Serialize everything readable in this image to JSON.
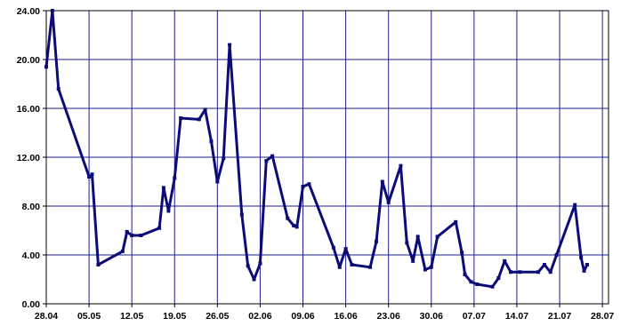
{
  "chart_data": {
    "type": "line",
    "ylim": [
      0,
      24
    ],
    "y_ticks": [
      0,
      4,
      8,
      12,
      16,
      20,
      24
    ],
    "y_tick_labels": [
      "0.00",
      "4.00",
      "8.00",
      "12.00",
      "16.00",
      "20.00",
      "24.00"
    ],
    "x_ticks": [
      0,
      7,
      14,
      21,
      28,
      35,
      42,
      49,
      56,
      63,
      70,
      77,
      84,
      91
    ],
    "x_tick_labels": [
      "28.04",
      "05.05",
      "12.05",
      "19.05",
      "26.05",
      "02.06",
      "09.06",
      "16.06",
      "23.06",
      "30.06",
      "07.07",
      "14.07",
      "21.07",
      "28.07"
    ],
    "xlim": [
      0,
      92
    ],
    "grid": true,
    "line_color": "#0c0c78",
    "grid_color": "#1e1e8c",
    "series": [
      {
        "x": [
          0,
          1,
          2,
          7,
          7.5,
          8.5,
          12.5,
          13.2,
          14,
          15.5,
          18.5,
          19.2,
          20,
          21,
          22,
          25,
          26,
          27,
          28,
          29,
          30,
          32,
          33,
          34,
          35,
          36,
          37,
          39.5,
          40.5,
          41,
          42,
          43,
          47,
          48,
          49,
          50,
          53,
          54,
          55,
          56,
          58,
          59,
          60,
          60.8,
          62,
          63,
          64,
          67,
          68,
          68.5,
          69.5,
          70.5,
          73,
          74,
          75,
          76,
          77.5,
          80.5,
          81.5,
          82.5,
          83.5,
          86.5,
          87.5,
          88,
          88.5
        ],
        "y": [
          19.4,
          24.0,
          17.6,
          10.4,
          10.6,
          3.2,
          4.3,
          5.9,
          5.6,
          5.6,
          6.2,
          9.5,
          7.6,
          10.3,
          15.2,
          15.1,
          15.9,
          13.3,
          10.0,
          11.9,
          21.2,
          7.3,
          3.1,
          2.0,
          3.3,
          11.7,
          12.1,
          7.0,
          6.4,
          6.3,
          9.6,
          9.8,
          4.6,
          3.0,
          4.5,
          3.2,
          3.0,
          5.1,
          10.0,
          8.3,
          11.3,
          5.0,
          3.5,
          5.5,
          2.8,
          3.0,
          5.5,
          6.7,
          4.2,
          2.4,
          1.8,
          1.6,
          1.4,
          2.1,
          3.5,
          2.6,
          2.6,
          2.6,
          3.2,
          2.6,
          4.0,
          8.1,
          3.8,
          2.7,
          3.2
        ]
      }
    ]
  }
}
